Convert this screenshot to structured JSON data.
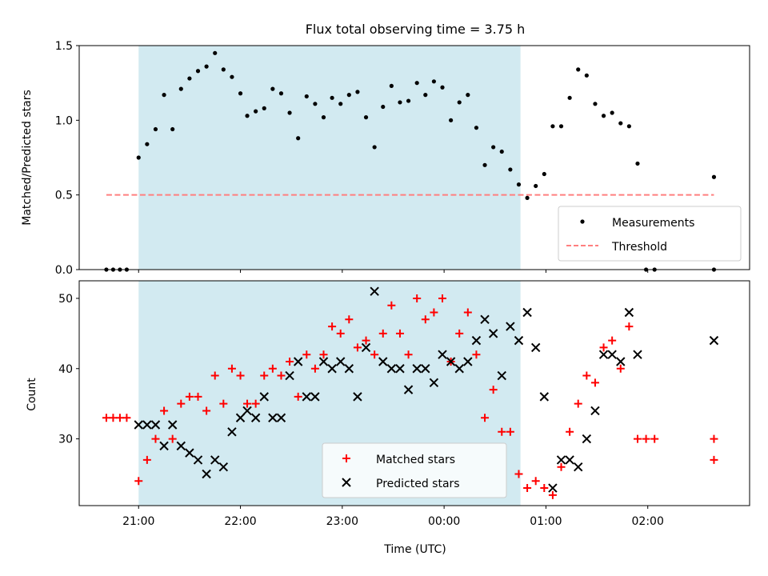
{
  "figure": {
    "title": "Flux total observing time = 3.75 h",
    "xlabel": "Time (UTC)"
  },
  "colors": {
    "shade": "#add8e6",
    "measurement": "#000000",
    "threshold": "#ff7f7f",
    "matched": "#ff0000",
    "predicted": "#000000"
  },
  "chart_data": [
    {
      "type": "scatter",
      "ylabel": "Matched/Predicted stars",
      "xlim": [
        "20:25",
        "03:00"
      ],
      "ylim": [
        0,
        1.5
      ],
      "y_ticks": [
        0.0,
        0.5,
        1.0,
        1.5
      ],
      "y_tick_labels": [
        "0.0",
        "0.5",
        "1.0",
        "1.5"
      ],
      "legend_position": "lower right",
      "shaded_interval": [
        "21:00",
        "00:45"
      ],
      "threshold": {
        "name": "Threshold",
        "value": 0.5,
        "x_range": [
          "20:41",
          "02:39"
        ]
      },
      "series": [
        {
          "name": "Measurements",
          "marker": "dot",
          "points": [
            [
              "20:41",
              0
            ],
            [
              "20:45",
              0
            ],
            [
              "20:49",
              0
            ],
            [
              "20:53",
              0
            ],
            [
              "21:00",
              0.75
            ],
            [
              "21:05",
              0.84
            ],
            [
              "21:10",
              0.94
            ],
            [
              "21:15",
              1.17
            ],
            [
              "21:20",
              0.94
            ],
            [
              "21:25",
              1.21
            ],
            [
              "21:30",
              1.28
            ],
            [
              "21:35",
              1.33
            ],
            [
              "21:40",
              1.36
            ],
            [
              "21:45",
              1.45
            ],
            [
              "21:50",
              1.34
            ],
            [
              "21:55",
              1.29
            ],
            [
              "22:00",
              1.18
            ],
            [
              "22:04",
              1.03
            ],
            [
              "22:09",
              1.06
            ],
            [
              "22:14",
              1.08
            ],
            [
              "22:19",
              1.21
            ],
            [
              "22:24",
              1.18
            ],
            [
              "22:29",
              1.05
            ],
            [
              "22:34",
              0.88
            ],
            [
              "22:39",
              1.16
            ],
            [
              "22:44",
              1.11
            ],
            [
              "22:49",
              1.02
            ],
            [
              "22:54",
              1.15
            ],
            [
              "22:59",
              1.11
            ],
            [
              "23:04",
              1.17
            ],
            [
              "23:09",
              1.19
            ],
            [
              "23:14",
              1.02
            ],
            [
              "23:19",
              0.82
            ],
            [
              "23:24",
              1.09
            ],
            [
              "23:29",
              1.23
            ],
            [
              "23:34",
              1.12
            ],
            [
              "23:39",
              1.13
            ],
            [
              "23:44",
              1.25
            ],
            [
              "23:49",
              1.17
            ],
            [
              "23:54",
              1.26
            ],
            [
              "23:59",
              1.22
            ],
            [
              "00:04",
              1.0
            ],
            [
              "00:09",
              1.12
            ],
            [
              "00:14",
              1.17
            ],
            [
              "00:19",
              0.95
            ],
            [
              "00:24",
              0.7
            ],
            [
              "00:29",
              0.82
            ],
            [
              "00:34",
              0.79
            ],
            [
              "00:39",
              0.67
            ],
            [
              "00:44",
              0.57
            ],
            [
              "00:49",
              0.48
            ],
            [
              "00:54",
              0.56
            ],
            [
              "00:59",
              0.64
            ],
            [
              "01:04",
              0.96
            ],
            [
              "01:09",
              0.96
            ],
            [
              "01:14",
              1.15
            ],
            [
              "01:19",
              1.34
            ],
            [
              "01:24",
              1.3
            ],
            [
              "01:29",
              1.11
            ],
            [
              "01:34",
              1.03
            ],
            [
              "01:39",
              1.05
            ],
            [
              "01:44",
              0.98
            ],
            [
              "01:49",
              0.96
            ],
            [
              "01:54",
              0.71
            ],
            [
              "01:59",
              0
            ],
            [
              "02:04",
              0
            ],
            [
              "02:39",
              0
            ],
            [
              "02:39",
              0.62
            ]
          ]
        }
      ]
    },
    {
      "type": "scatter",
      "ylabel": "Count",
      "xlim": [
        "20:25",
        "03:00"
      ],
      "ylim": [
        20.5,
        52.5
      ],
      "y_ticks": [
        30,
        40,
        50
      ],
      "y_tick_labels": [
        "30",
        "40",
        "50"
      ],
      "x_ticks": [
        "21:00",
        "22:00",
        "23:00",
        "00:00",
        "01:00",
        "02:00"
      ],
      "x_tick_labels": [
        "21:00",
        "22:00",
        "23:00",
        "00:00",
        "01:00",
        "02:00"
      ],
      "legend_position": "lower center",
      "shaded_interval": [
        "21:00",
        "00:45"
      ],
      "series": [
        {
          "name": "Matched stars",
          "marker": "plus",
          "points": [
            [
              "20:41",
              33
            ],
            [
              "20:45",
              33
            ],
            [
              "20:49",
              33
            ],
            [
              "20:53",
              33
            ],
            [
              "21:00",
              24
            ],
            [
              "21:05",
              27
            ],
            [
              "21:10",
              30
            ],
            [
              "21:15",
              34
            ],
            [
              "21:20",
              30
            ],
            [
              "21:25",
              35
            ],
            [
              "21:30",
              36
            ],
            [
              "21:35",
              36
            ],
            [
              "21:40",
              34
            ],
            [
              "21:45",
              39
            ],
            [
              "21:50",
              35
            ],
            [
              "21:55",
              40
            ],
            [
              "22:00",
              39
            ],
            [
              "22:04",
              35
            ],
            [
              "22:09",
              35
            ],
            [
              "22:14",
              39
            ],
            [
              "22:19",
              40
            ],
            [
              "22:24",
              39
            ],
            [
              "22:29",
              41
            ],
            [
              "22:34",
              36
            ],
            [
              "22:39",
              42
            ],
            [
              "22:44",
              40
            ],
            [
              "22:49",
              42
            ],
            [
              "22:54",
              46
            ],
            [
              "22:59",
              45
            ],
            [
              "23:04",
              47
            ],
            [
              "23:09",
              43
            ],
            [
              "23:14",
              44
            ],
            [
              "23:19",
              42
            ],
            [
              "23:24",
              45
            ],
            [
              "23:29",
              49
            ],
            [
              "23:34",
              45
            ],
            [
              "23:39",
              42
            ],
            [
              "23:44",
              50
            ],
            [
              "23:49",
              47
            ],
            [
              "23:54",
              48
            ],
            [
              "23:59",
              50
            ],
            [
              "00:04",
              41
            ],
            [
              "00:09",
              45
            ],
            [
              "00:14",
              48
            ],
            [
              "00:19",
              42
            ],
            [
              "00:24",
              33
            ],
            [
              "00:29",
              37
            ],
            [
              "00:34",
              31
            ],
            [
              "00:39",
              31
            ],
            [
              "00:44",
              25
            ],
            [
              "00:49",
              23
            ],
            [
              "00:54",
              24
            ],
            [
              "00:59",
              23
            ],
            [
              "01:04",
              22
            ],
            [
              "01:09",
              26
            ],
            [
              "01:14",
              31
            ],
            [
              "01:19",
              35
            ],
            [
              "01:24",
              39
            ],
            [
              "01:29",
              38
            ],
            [
              "01:34",
              43
            ],
            [
              "01:39",
              44
            ],
            [
              "01:44",
              40
            ],
            [
              "01:49",
              46
            ],
            [
              "01:54",
              30
            ],
            [
              "01:59",
              30
            ],
            [
              "02:04",
              30
            ],
            [
              "02:39",
              30
            ],
            [
              "02:39",
              27
            ]
          ]
        },
        {
          "name": "Predicted stars",
          "marker": "x",
          "points": [
            [
              "21:00",
              32
            ],
            [
              "21:05",
              32
            ],
            [
              "21:10",
              32
            ],
            [
              "21:15",
              29
            ],
            [
              "21:20",
              32
            ],
            [
              "21:25",
              29
            ],
            [
              "21:30",
              28
            ],
            [
              "21:35",
              27
            ],
            [
              "21:40",
              25
            ],
            [
              "21:45",
              27
            ],
            [
              "21:50",
              26
            ],
            [
              "21:55",
              31
            ],
            [
              "22:00",
              33
            ],
            [
              "22:04",
              34
            ],
            [
              "22:09",
              33
            ],
            [
              "22:14",
              36
            ],
            [
              "22:19",
              33
            ],
            [
              "22:24",
              33
            ],
            [
              "22:29",
              39
            ],
            [
              "22:34",
              41
            ],
            [
              "22:39",
              36
            ],
            [
              "22:44",
              36
            ],
            [
              "22:49",
              41
            ],
            [
              "22:54",
              40
            ],
            [
              "22:59",
              41
            ],
            [
              "23:04",
              40
            ],
            [
              "23:09",
              36
            ],
            [
              "23:14",
              43
            ],
            [
              "23:19",
              51
            ],
            [
              "23:24",
              41
            ],
            [
              "23:29",
              40
            ],
            [
              "23:34",
              40
            ],
            [
              "23:39",
              37
            ],
            [
              "23:44",
              40
            ],
            [
              "23:49",
              40
            ],
            [
              "23:54",
              38
            ],
            [
              "23:59",
              42
            ],
            [
              "00:04",
              41
            ],
            [
              "00:09",
              40
            ],
            [
              "00:14",
              41
            ],
            [
              "00:19",
              44
            ],
            [
              "00:24",
              47
            ],
            [
              "00:29",
              45
            ],
            [
              "00:34",
              39
            ],
            [
              "00:39",
              46
            ],
            [
              "00:44",
              44
            ],
            [
              "00:49",
              48
            ],
            [
              "00:54",
              43
            ],
            [
              "00:59",
              36
            ],
            [
              "01:04",
              23
            ],
            [
              "01:09",
              27
            ],
            [
              "01:14",
              27
            ],
            [
              "01:19",
              26
            ],
            [
              "01:24",
              30
            ],
            [
              "01:29",
              34
            ],
            [
              "01:34",
              42
            ],
            [
              "01:39",
              42
            ],
            [
              "01:44",
              41
            ],
            [
              "01:49",
              48
            ],
            [
              "01:54",
              42
            ],
            [
              "02:39",
              44
            ]
          ]
        }
      ]
    }
  ]
}
